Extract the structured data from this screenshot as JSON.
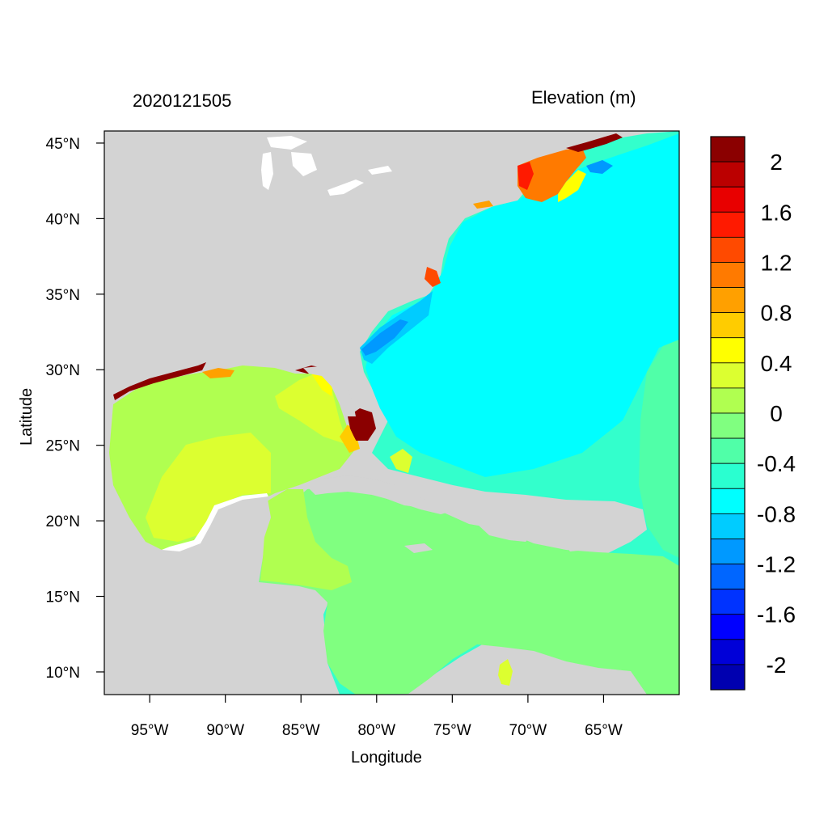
{
  "plot": {
    "left_title": "2020121505",
    "right_title": "Elevation (m)",
    "xlabel": "Longitude",
    "ylabel": "Latitude"
  },
  "axes": {
    "x_ticks": [
      "95°W",
      "90°W",
      "85°W",
      "80°W",
      "75°W",
      "70°W",
      "65°W"
    ],
    "x_tick_values": [
      -95,
      -90,
      -85,
      -80,
      -75,
      -70,
      -65
    ],
    "y_ticks": [
      "45°N",
      "40°N",
      "35°N",
      "30°N",
      "25°N",
      "20°N",
      "15°N",
      "10°N"
    ],
    "y_tick_values": [
      45,
      40,
      35,
      30,
      25,
      20,
      15,
      10
    ],
    "lon_range": [
      -98,
      -60
    ],
    "lat_range": [
      8.5,
      45.8
    ]
  },
  "colorbar": {
    "labels": [
      "2",
      "1.6",
      "1.2",
      "0.8",
      "0.4",
      "0",
      "-0.4",
      "-0.8",
      "-1.2",
      "-1.6",
      "-2"
    ],
    "colors": [
      "#8b0000",
      "#bb0000",
      "#e80000",
      "#ff1a00",
      "#ff4a00",
      "#ff7a00",
      "#ffa000",
      "#ffcc00",
      "#ffff00",
      "#dcff30",
      "#b0ff50",
      "#80ff80",
      "#50ffa8",
      "#2affd0",
      "#00ffff",
      "#00ccff",
      "#0099ff",
      "#0066ff",
      "#0033ff",
      "#0000ff",
      "#0000d8",
      "#0000b0"
    ]
  },
  "colors": {
    "land": "#d3d3d3",
    "lakes": "#ffffff",
    "ocean_base": "#33ffcc"
  }
}
